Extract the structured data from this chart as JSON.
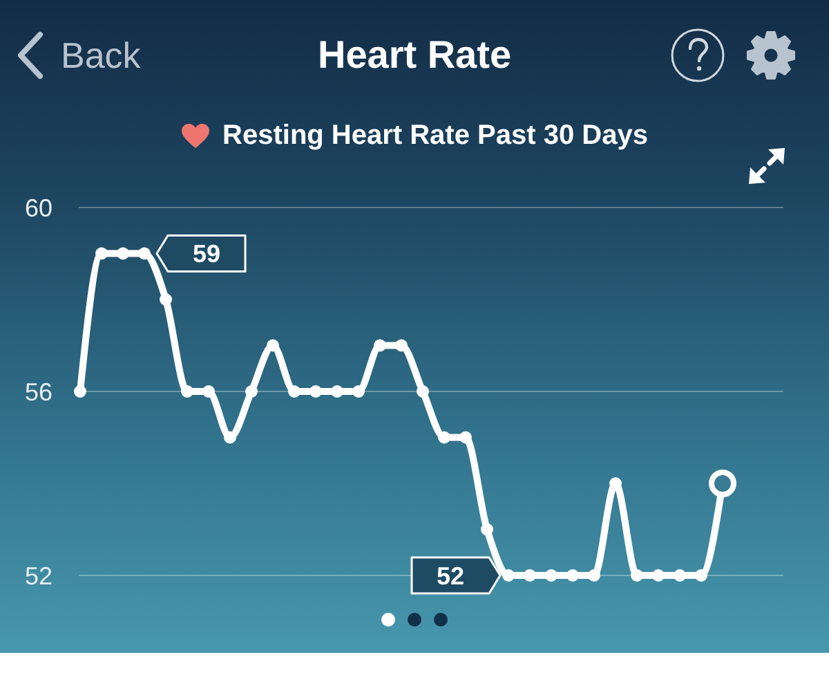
{
  "chart_data": {
    "type": "line",
    "title": "Heart Rate",
    "subtitle": "Resting Heart Rate Past 30 Days",
    "annotations": [
      "Back",
      "59",
      "52"
    ],
    "categories": [
      null,
      null,
      null,
      null,
      null,
      null,
      null,
      null,
      null,
      null,
      null,
      null,
      null,
      null,
      null,
      null,
      null,
      null,
      null,
      null,
      null,
      null,
      null,
      null,
      null,
      null,
      null,
      null,
      null,
      null,
      null
    ],
    "values": [
      56,
      59,
      59,
      59,
      58,
      56,
      56,
      55,
      56,
      57,
      56,
      56,
      56,
      56,
      57,
      57,
      56,
      55,
      55,
      53,
      52,
      52,
      52,
      52,
      52,
      54,
      52,
      52,
      52,
      52,
      54
    ],
    "color": "#ffffff",
    "ylim": [
      52,
      60
    ],
    "yticks": [
      52,
      56,
      60
    ],
    "grid": "y",
    "tick_labels": "y",
    "marker": "circle",
    "line_style": "solid"
  }
}
